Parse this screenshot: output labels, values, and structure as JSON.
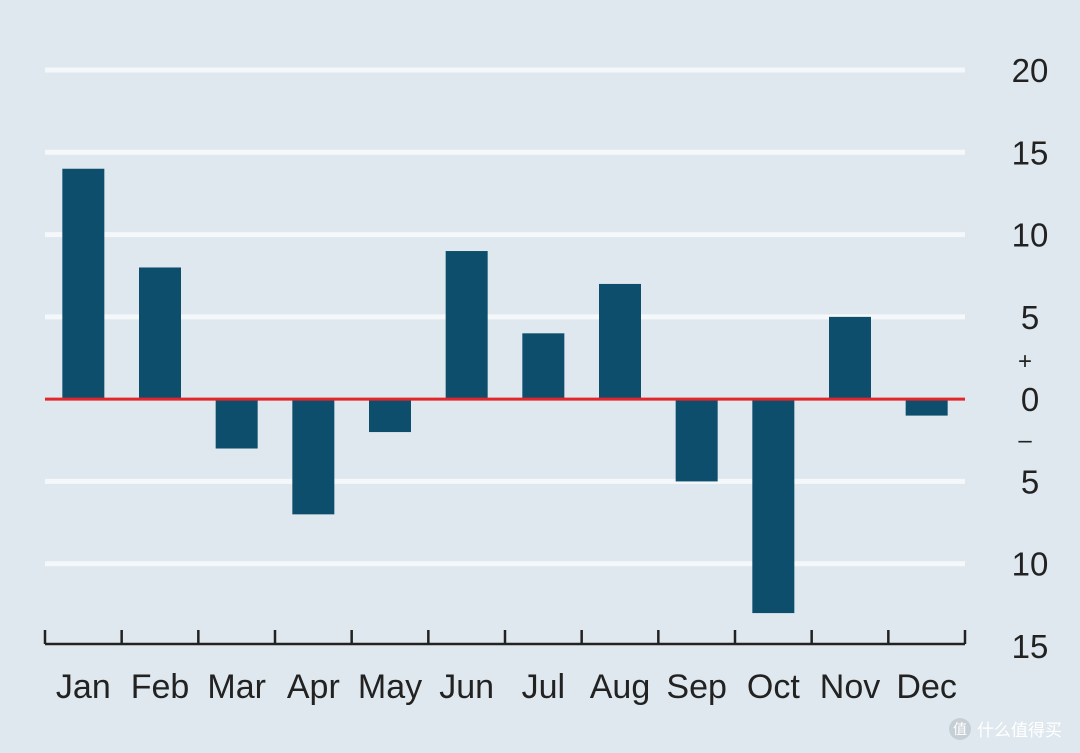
{
  "chart_data": {
    "type": "bar",
    "categories": [
      "Jan",
      "Feb",
      "Mar",
      "Apr",
      "May",
      "Jun",
      "Jul",
      "Aug",
      "Sep",
      "Oct",
      "Nov",
      "Dec"
    ],
    "values": [
      14,
      8,
      -3,
      -7,
      -2,
      9,
      4,
      7,
      -5,
      -13,
      5,
      -1
    ],
    "title": "",
    "xlabel": "",
    "ylabel": "",
    "ylim": [
      -15,
      20
    ],
    "y_ticks": [
      {
        "value": 20,
        "label": "20"
      },
      {
        "value": 15,
        "label": "15"
      },
      {
        "value": 10,
        "label": "10"
      },
      {
        "value": 5,
        "label": "5"
      },
      {
        "value": 0,
        "label": "0"
      },
      {
        "value": -5,
        "label": "5"
      },
      {
        "value": -10,
        "label": "10"
      },
      {
        "value": -15,
        "label": "15"
      }
    ],
    "sign_markers": {
      "plus": "+",
      "minus": "–"
    },
    "y_axis_position": "right",
    "grid": true,
    "legend": "none",
    "colors": {
      "background": "#dfe8ee",
      "bar": "#0e4e6d",
      "gridline": "#f5f8fa",
      "zero_line": "#e3262b",
      "text": "#222222",
      "axis": "#222222"
    }
  },
  "watermark": {
    "icon": "zhi-logo-icon",
    "logo_glyph": "值",
    "text": "什么值得买"
  }
}
